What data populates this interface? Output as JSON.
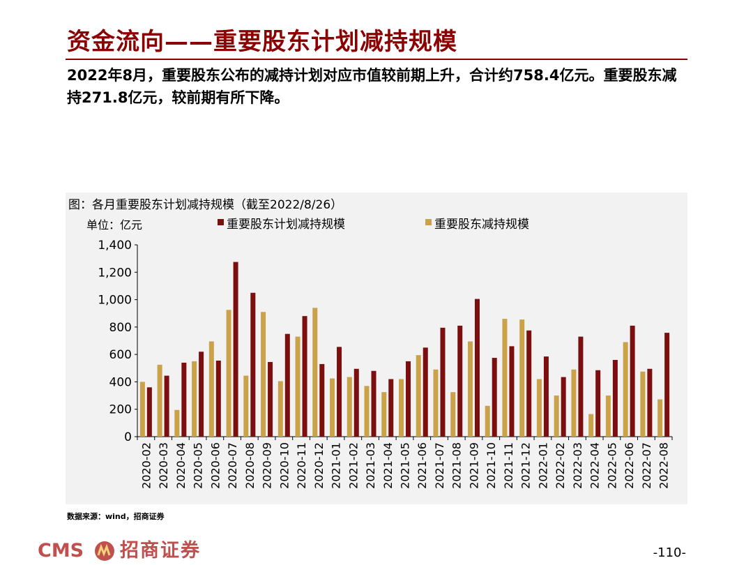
{
  "slide": {
    "title": "资金流向——重要股东计划减持规模",
    "summary": "2022年8月，重要股东公布的减持计划对应市值较前期上升，合计约758.4亿元。重要股东减持271.8亿元，较前期有所下降。",
    "source": "数据来源：wind，招商证券",
    "page_number": "-110-"
  },
  "footer": {
    "logo_text": "CMS",
    "logo_cn": "招商证券"
  },
  "colors": {
    "title": "#8b0000",
    "planned": "#7b0f0f",
    "actual": "#c9a24a",
    "panel_bg": "#f2f2f2",
    "logo": "#c0504d"
  },
  "chart_data": {
    "type": "bar",
    "title": "图：各月重要股东计划减持规模（截至2022/8/26）",
    "unit_label": "单位：亿元",
    "ylim": [
      0,
      1400
    ],
    "yticks": [
      0,
      200,
      400,
      600,
      800,
      1000,
      1200,
      1400
    ],
    "ytick_labels": [
      "0",
      "200",
      "400",
      "600",
      "800",
      "1,000",
      "1,200",
      "1,400"
    ],
    "grid": false,
    "legend_position": "top",
    "categories": [
      "2020-02",
      "2020-03",
      "2020-04",
      "2020-05",
      "2020-06",
      "2020-07",
      "2020-08",
      "2020-09",
      "2020-10",
      "2020-11",
      "2020-12",
      "2021-01",
      "2021-02",
      "2021-03",
      "2021-04",
      "2021-05",
      "2021-06",
      "2021-07",
      "2021-08",
      "2021-09",
      "2021-10",
      "2021-11",
      "2021-12",
      "2022-01",
      "2022-02",
      "2022-03",
      "2022-04",
      "2022-05",
      "2022-06",
      "2022-07",
      "2022-08"
    ],
    "series": [
      {
        "name": "重要股东减持规模",
        "color": "#c9a24a",
        "values": [
          400,
          525,
          195,
          550,
          695,
          925,
          445,
          910,
          405,
          730,
          940,
          425,
          435,
          370,
          325,
          420,
          595,
          490,
          325,
          695,
          225,
          860,
          855,
          420,
          300,
          490,
          165,
          300,
          690,
          475,
          272
        ]
      },
      {
        "name": "重要股东计划减持规模",
        "color": "#7b0f0f",
        "values": [
          360,
          445,
          540,
          620,
          555,
          1275,
          1050,
          545,
          750,
          880,
          530,
          655,
          495,
          480,
          420,
          550,
          650,
          795,
          810,
          1005,
          575,
          660,
          775,
          585,
          435,
          730,
          485,
          560,
          810,
          495,
          758
        ]
      }
    ]
  }
}
